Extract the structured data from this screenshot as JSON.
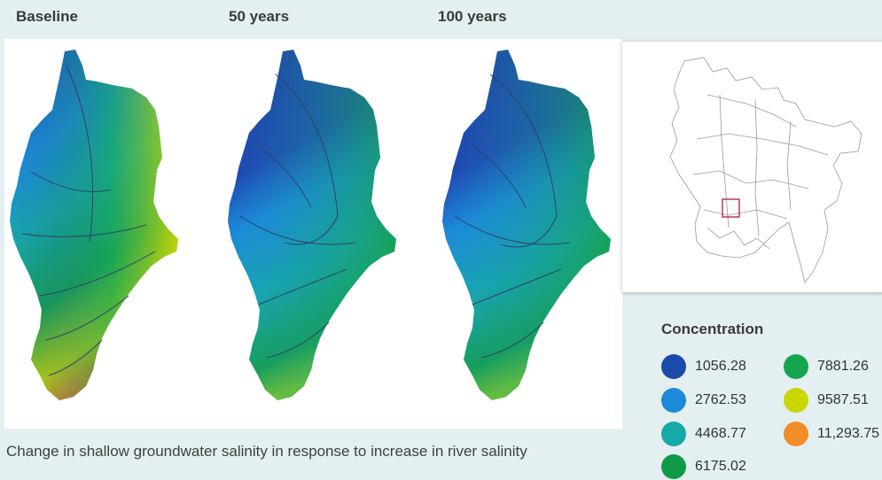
{
  "panels": [
    {
      "title": "Baseline"
    },
    {
      "title": "50 years"
    },
    {
      "title": "100 years"
    }
  ],
  "caption": "Change in shallow groundwater salinity in response to increase in river salinity",
  "legend": {
    "title": "Concentration",
    "items": [
      {
        "label": "1056.28",
        "color": "#1b4aa8"
      },
      {
        "label": "2762.53",
        "color": "#1c8ad9"
      },
      {
        "label": "4468.77",
        "color": "#17a8a8"
      },
      {
        "label": "6175.02",
        "color": "#0f9a48"
      },
      {
        "label": "7881.26",
        "color": "#15a54e"
      },
      {
        "label": "9587.51",
        "color": "#cad600"
      },
      {
        "label": "11,293.75",
        "color": "#f28d28"
      }
    ]
  }
}
